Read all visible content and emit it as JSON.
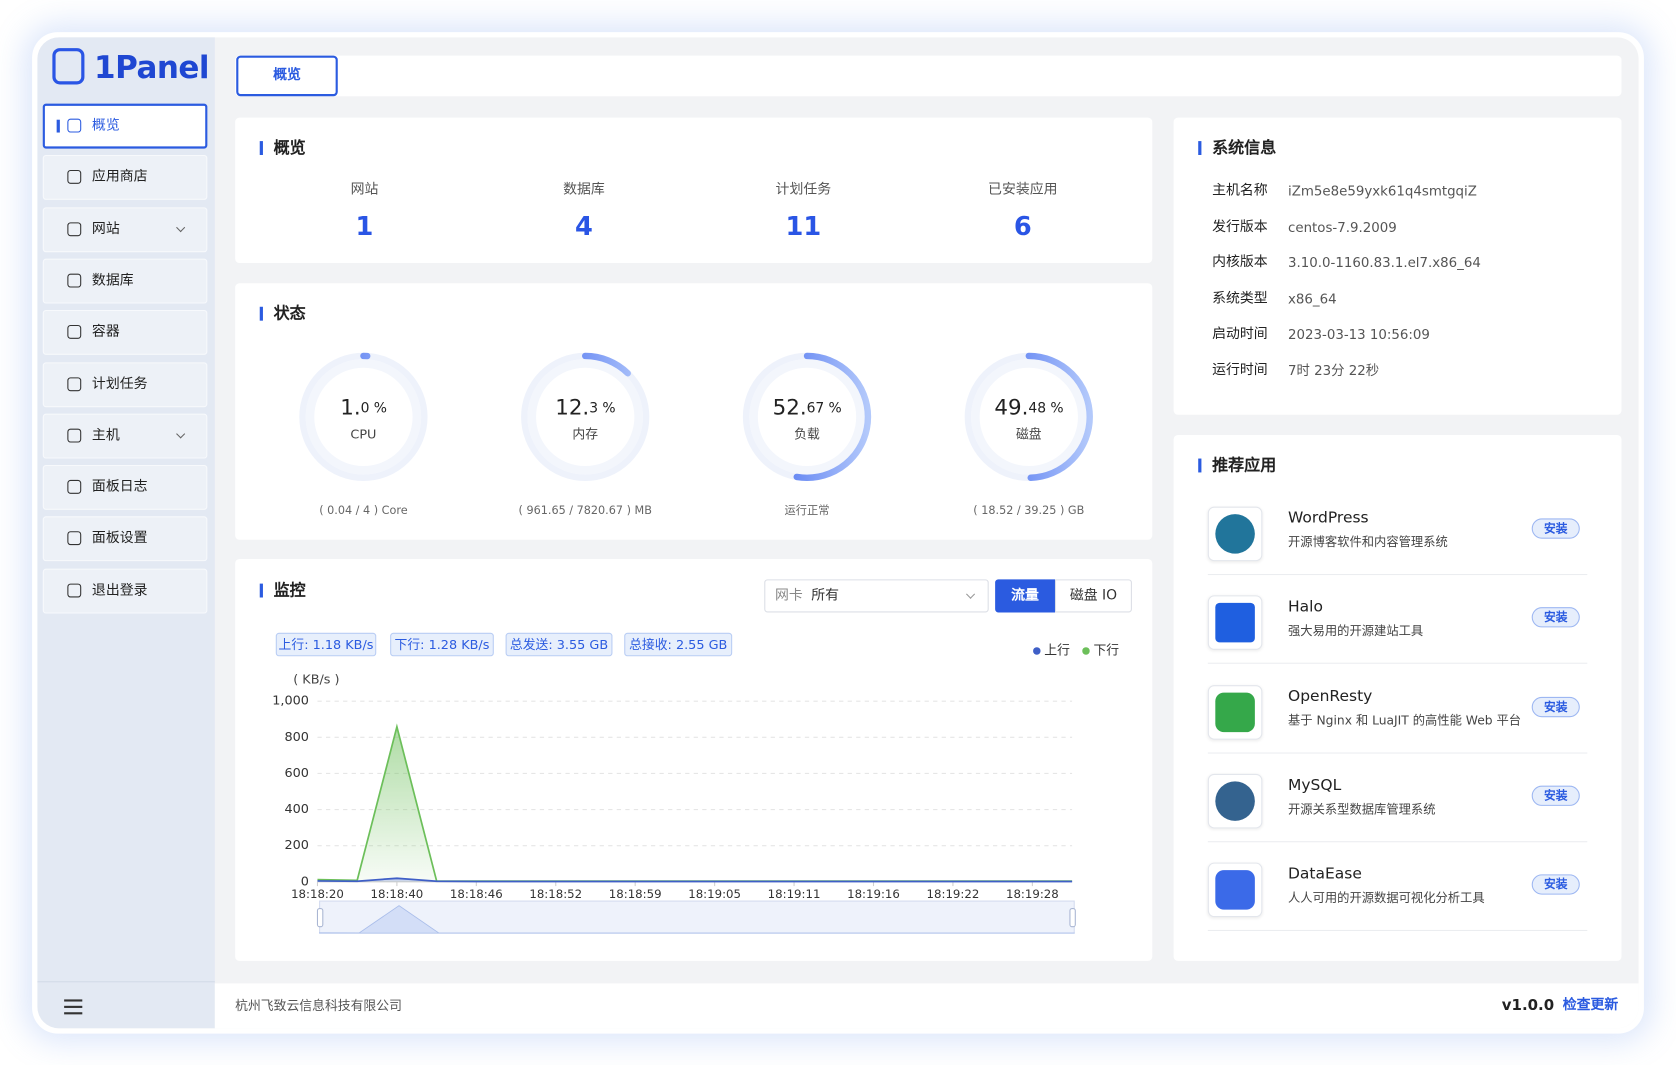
{
  "sidebar": {
    "logo": "1Panel",
    "menu": [
      {
        "label": "概览"
      },
      {
        "label": "应用商店"
      },
      {
        "label": "网站",
        "expandable": true
      },
      {
        "label": "数据库"
      },
      {
        "label": "容器"
      },
      {
        "label": "计划任务"
      },
      {
        "label": "主机",
        "expandable": true
      },
      {
        "label": "面板日志"
      },
      {
        "label": "面板设置"
      },
      {
        "label": "退出登录"
      }
    ]
  },
  "tab": "概览",
  "overview": {
    "title": "概览",
    "stats": [
      {
        "label": "网站",
        "value": 1
      },
      {
        "label": "数据库",
        "value": 4
      },
      {
        "label": "计划任务",
        "value": 11
      },
      {
        "label": "已安装应用",
        "value": 6
      }
    ]
  },
  "status": {
    "title": "状态",
    "gauges": [
      {
        "value": 1.0,
        "value_label": "1.0",
        "unit": "%",
        "label": "CPU",
        "detail": "( 0.04 / 4 ) Core"
      },
      {
        "value": 12.3,
        "value_label": "12.3",
        "unit": "%",
        "label": "内存",
        "detail": "( 961.65 / 7820.67 ) MB"
      },
      {
        "value": 52.67,
        "value_label": "52.67",
        "unit": "%",
        "label": "负载",
        "detail": "运行正常"
      },
      {
        "value": 49.48,
        "value_label": "49.48",
        "unit": "%",
        "label": "磁盘",
        "detail": "( 18.52 / 39.25 ) GB"
      }
    ]
  },
  "monitor": {
    "title": "监控",
    "nic_label": "网卡",
    "nic_value": "所有",
    "buttons": [
      "流量",
      "磁盘 IO"
    ],
    "tags": [
      "上行: 1.18 KB/s",
      "下行: 1.28 KB/s",
      "总发送: 3.55 GB",
      "总接收: 2.55 GB"
    ]
  },
  "chart_data": {
    "type": "area",
    "y_label": "( KB/s )",
    "categories": [
      "18:18:20",
      null,
      "18:18:40",
      null,
      "18:18:46",
      null,
      "18:18:52",
      null,
      "18:18:59",
      null,
      "18:19:05",
      null,
      "18:19:11",
      null,
      "18:19:16",
      null,
      "18:19:22",
      null,
      "18:19:28",
      null
    ],
    "series": [
      {
        "name": "上行",
        "color": "#3f5fc7",
        "values": [
          5,
          3,
          20,
          3,
          2,
          2,
          2,
          2,
          2,
          2,
          2,
          2,
          2,
          2,
          2,
          2,
          2,
          2,
          2,
          2
        ]
      },
      {
        "name": "下行",
        "color": "#6cbf5a",
        "values": [
          12,
          8,
          858,
          5,
          4,
          4,
          4,
          4,
          4,
          4,
          4,
          4,
          4,
          4,
          4,
          4,
          4,
          4,
          4,
          4
        ]
      }
    ],
    "ylim": [
      0,
      1000
    ],
    "yticks": [
      0,
      200,
      400,
      600,
      800,
      {
        "value": 1000,
        "label": "1,000"
      }
    ],
    "grid": true
  },
  "system": {
    "title": "系统信息",
    "rows": [
      [
        "主机名称",
        "iZm5e8e59yxk61q4smtgqiZ"
      ],
      [
        "发行版本",
        "centos-7.9.2009"
      ],
      [
        "内核版本",
        "3.10.0-1160.83.1.el7.x86_64"
      ],
      [
        "系统类型",
        "x86_64"
      ],
      [
        "启动时间",
        "2023-03-13 10:56:09"
      ],
      [
        "运行时间",
        "7时 23分 22秒"
      ]
    ]
  },
  "apps": {
    "title": "推荐应用",
    "items": [
      {
        "name": "WordPress",
        "desc": "开源博客软件和内容管理系统",
        "action": "安装"
      },
      {
        "name": "Halo",
        "desc": "强大易用的开源建站工具",
        "action": "安装"
      },
      {
        "name": "OpenResty",
        "desc": "基于 Nginx 和 LuaJIT 的高性能 Web 平台",
        "action": "安装"
      },
      {
        "name": "MySQL",
        "desc": "开源关系型数据库管理系统",
        "action": "安装"
      },
      {
        "name": "DataEase",
        "desc": "人人可用的开源数据可视化分析工具",
        "action": "安装"
      }
    ]
  },
  "footer": {
    "company": "杭州飞致云信息科技有限公司",
    "version": "v1.0.0",
    "update": "检查更新"
  }
}
